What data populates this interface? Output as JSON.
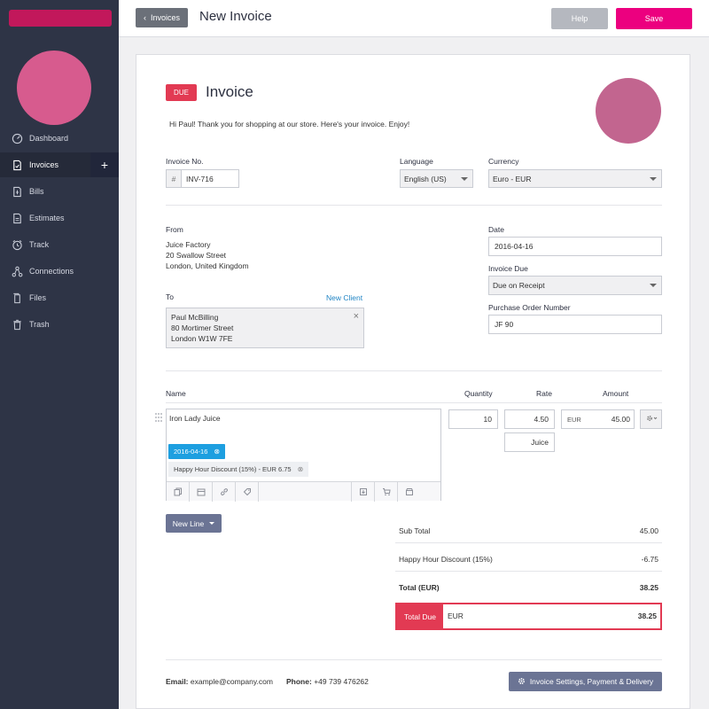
{
  "sidebar": {
    "items": [
      {
        "label": "Dashboard",
        "icon": "dashboard-icon"
      },
      {
        "label": "Invoices",
        "icon": "invoice-icon"
      },
      {
        "label": "Bills",
        "icon": "bill-icon"
      },
      {
        "label": "Estimates",
        "icon": "estimate-icon"
      },
      {
        "label": "Track",
        "icon": "clock-icon"
      },
      {
        "label": "Connections",
        "icon": "connections-icon"
      },
      {
        "label": "Files",
        "icon": "files-icon"
      },
      {
        "label": "Trash",
        "icon": "trash-icon"
      }
    ],
    "add_label": "+"
  },
  "topbar": {
    "back_label": "Invoices",
    "title": "New Invoice",
    "help_label": "Help",
    "save_label": "Save"
  },
  "invoice": {
    "status": "DUE",
    "title": "Invoice",
    "greeting": "Hi Paul! Thank you for shopping at our store. Here's your invoice. Enjoy!",
    "number_label": "Invoice No.",
    "number_prefix": "#",
    "number_value": "INV-716",
    "language_label": "Language",
    "language_value": "English (US)",
    "currency_label": "Currency",
    "currency_value": "Euro - EUR",
    "from_label": "From",
    "from_lines": [
      "Juice Factory",
      "20 Swallow Street",
      "London, United Kingdom"
    ],
    "to_label": "To",
    "new_client_label": "New Client",
    "to_lines": [
      "Paul McBilling",
      "80 Mortimer Street",
      "London W1W 7FE"
    ],
    "date_label": "Date",
    "date_value": "2016-04-16",
    "due_label": "Invoice Due",
    "due_value": "Due on Receipt",
    "po_label": "Purchase Order Number",
    "po_value": "JF 90"
  },
  "items": {
    "headers": {
      "name": "Name",
      "quantity": "Quantity",
      "rate": "Rate",
      "amount": "Amount"
    },
    "rows": [
      {
        "name": "Iron Lady Juice",
        "quantity": "10",
        "rate": "4.50",
        "unit": "Juice",
        "currency": "EUR",
        "amount": "45.00",
        "date_chip": "2016-04-16",
        "discount_chip": "Happy Hour Discount (15%) - EUR 6.75"
      }
    ],
    "new_line_label": "New Line"
  },
  "totals": {
    "subtotal_label": "Sub Total",
    "subtotal_value": "45.00",
    "discount_label": "Happy Hour Discount (15%)",
    "discount_value": "-6.75",
    "total_label": "Total (EUR)",
    "total_value": "38.25",
    "due_label": "Total Due",
    "due_currency": "EUR",
    "due_value": "38.25"
  },
  "footer": {
    "email_label": "Email:",
    "email_value": "example@company.com",
    "phone_label": "Phone:",
    "phone_value": "+49 739 476262",
    "settings_label": "Invoice Settings, Payment & Delivery"
  },
  "colors": {
    "sidebar": "#2e3446",
    "accent": "#ec007f",
    "due": "#e23a53",
    "chip": "#1d9fe0"
  }
}
